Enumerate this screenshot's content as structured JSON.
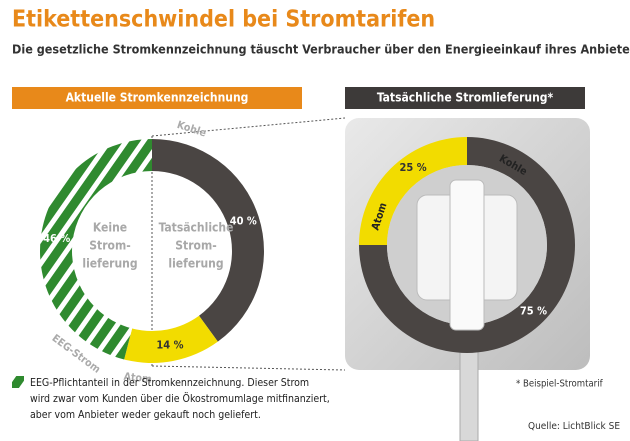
{
  "header": {
    "title": "Etikettenschwindel bei Stromtarifen",
    "subtitle": "Die gesetzliche Stromkennzeichnung täuscht Verbraucher über den Energieeinkauf ihres Anbieters"
  },
  "chart_data": [
    {
      "type": "donut",
      "title": "Aktuelle Stromkennzeichnung",
      "categories": [
        "Kohle",
        "Atom",
        "EEG-Strom"
      ],
      "values": [
        40,
        14,
        46
      ],
      "value_labels": [
        "40 %",
        "14 %",
        "46 %"
      ],
      "colors": [
        "#4a4543",
        "#f2dc00",
        "#2f8a2f"
      ],
      "hatch": [
        false,
        false,
        true
      ],
      "start_angle": 0,
      "center_labels": [
        [
          "Keine",
          "Strom-",
          "lieferung"
        ],
        [
          "Tatsächliche",
          "Strom-",
          "lieferung"
        ]
      ]
    },
    {
      "type": "donut",
      "title": "Tatsächliche Stromlieferung*",
      "categories": [
        "Atom",
        "Kohle"
      ],
      "values": [
        25,
        75
      ],
      "value_labels": [
        "25 %",
        "75 %"
      ],
      "colors": [
        "#f2dc00",
        "#4a4543"
      ],
      "hatch": [
        false,
        false
      ],
      "start_angle": -90
    }
  ],
  "notes": {
    "eeg": [
      "EEG-Pflichtanteil in der Stromkennzeichnung. Dieser Strom",
      "wird zwar vom Kunden über die Ökostromumlage mitfinanziert,",
      "aber vom Anbieter weder gekauft noch geliefert."
    ],
    "footnote": "* Beispiel-Stromtarif",
    "source": "Quelle: LichtBlick SE"
  }
}
